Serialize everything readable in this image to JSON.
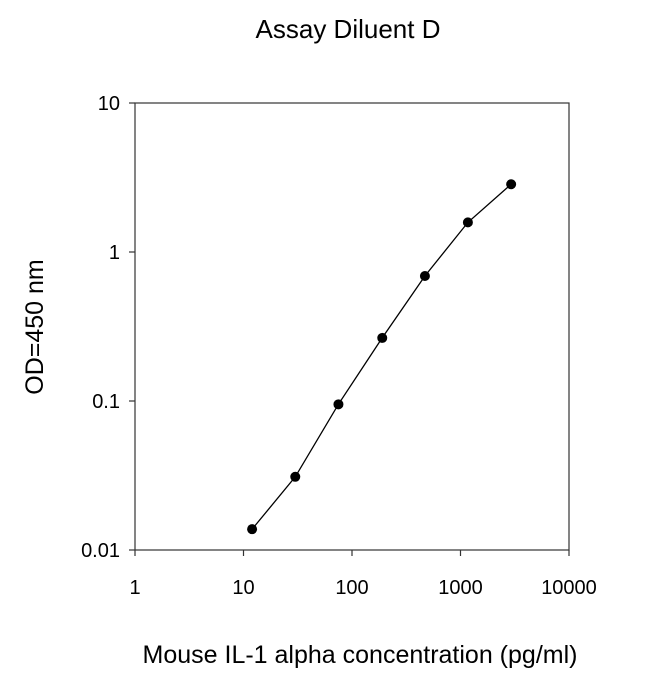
{
  "chart_data": {
    "type": "scatter",
    "title": "Assay Diluent D",
    "xlabel": "Mouse IL-1 alpha concentration (pg/ml)",
    "ylabel": "OD=450 nm",
    "x_scale": "log",
    "y_scale": "log",
    "xlim": [
      1,
      10000
    ],
    "ylim": [
      0.01,
      10
    ],
    "x_ticks": [
      "1",
      "10",
      "100",
      "1000",
      "10000"
    ],
    "y_ticks": [
      "10",
      "1",
      "0.1",
      "0.01"
    ],
    "grid": false,
    "legend": "none",
    "marker_color": "#000000",
    "line_color": "#000000",
    "series": [
      {
        "x": [
          12,
          30,
          75,
          190,
          470,
          1170,
          2930
        ],
        "y": [
          0.0138,
          0.031,
          0.095,
          0.265,
          0.69,
          1.58,
          2.85
        ]
      }
    ]
  }
}
